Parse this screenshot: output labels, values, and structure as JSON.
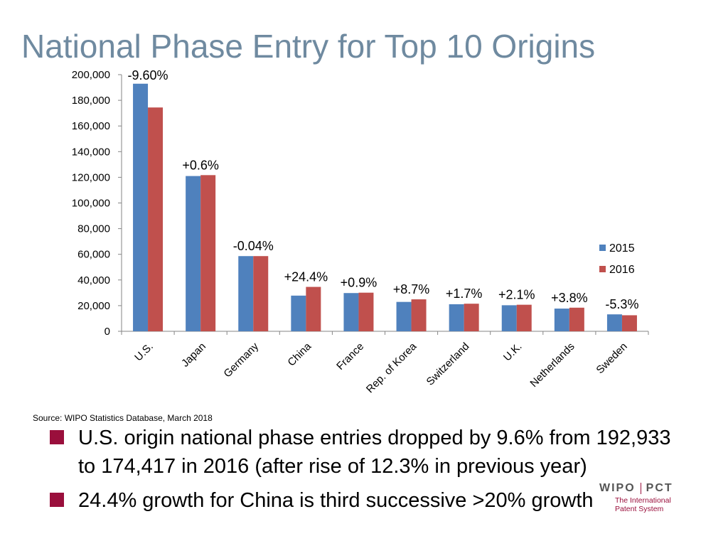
{
  "slide": {
    "title": "National Phase Entry for Top 10 Origins",
    "source": "Source:  WIPO Statistics Database, March 2018",
    "bullets": [
      "U.S. origin national phase entries dropped by 9.6% from 192,933 to 174,417 in 2016 (after rise of 12.3% in previous year)",
      "24.4% growth for China is third successive >20% growth"
    ],
    "logo": {
      "left": "WIPO",
      "right": "PCT",
      "line1": "The International",
      "line2": "Patent System"
    }
  },
  "colors": {
    "series_2015": "#4f81bd",
    "series_2016": "#c0504d",
    "title": "#6f8aa0",
    "bullet_marker": "#9a0f3c"
  },
  "chart_data": {
    "type": "bar",
    "title": "",
    "xlabel": "",
    "ylabel": "",
    "ylim": [
      0,
      200000
    ],
    "yticks": [
      0,
      20000,
      40000,
      60000,
      80000,
      100000,
      120000,
      140000,
      160000,
      180000,
      200000
    ],
    "ytick_labels": [
      "0",
      "20,000",
      "40,000",
      "60,000",
      "80,000",
      "100,000",
      "120,000",
      "140,000",
      "160,000",
      "180,000",
      "200,000"
    ],
    "categories": [
      "U.S.",
      "Japan",
      "Germany",
      "China",
      "France",
      "Rep. of Korea",
      "Switzerland",
      "U.K.",
      "Netherlands",
      "Sweden"
    ],
    "series": [
      {
        "name": "2015",
        "values": [
          192933,
          121000,
          58600,
          27800,
          29800,
          22900,
          21100,
          20300,
          17700,
          13200
        ]
      },
      {
        "name": "2016",
        "values": [
          174417,
          121700,
          58600,
          34600,
          30100,
          24900,
          21500,
          20700,
          18400,
          12500
        ]
      }
    ],
    "annotations": [
      "-9.60%",
      "+0.6%",
      "-0.04%",
      "+24.4%",
      "+0.9%",
      "+8.7%",
      "+1.7%",
      "+2.1%",
      "+3.8%",
      "-5.3%"
    ],
    "legend_position": "right",
    "grid": false
  }
}
